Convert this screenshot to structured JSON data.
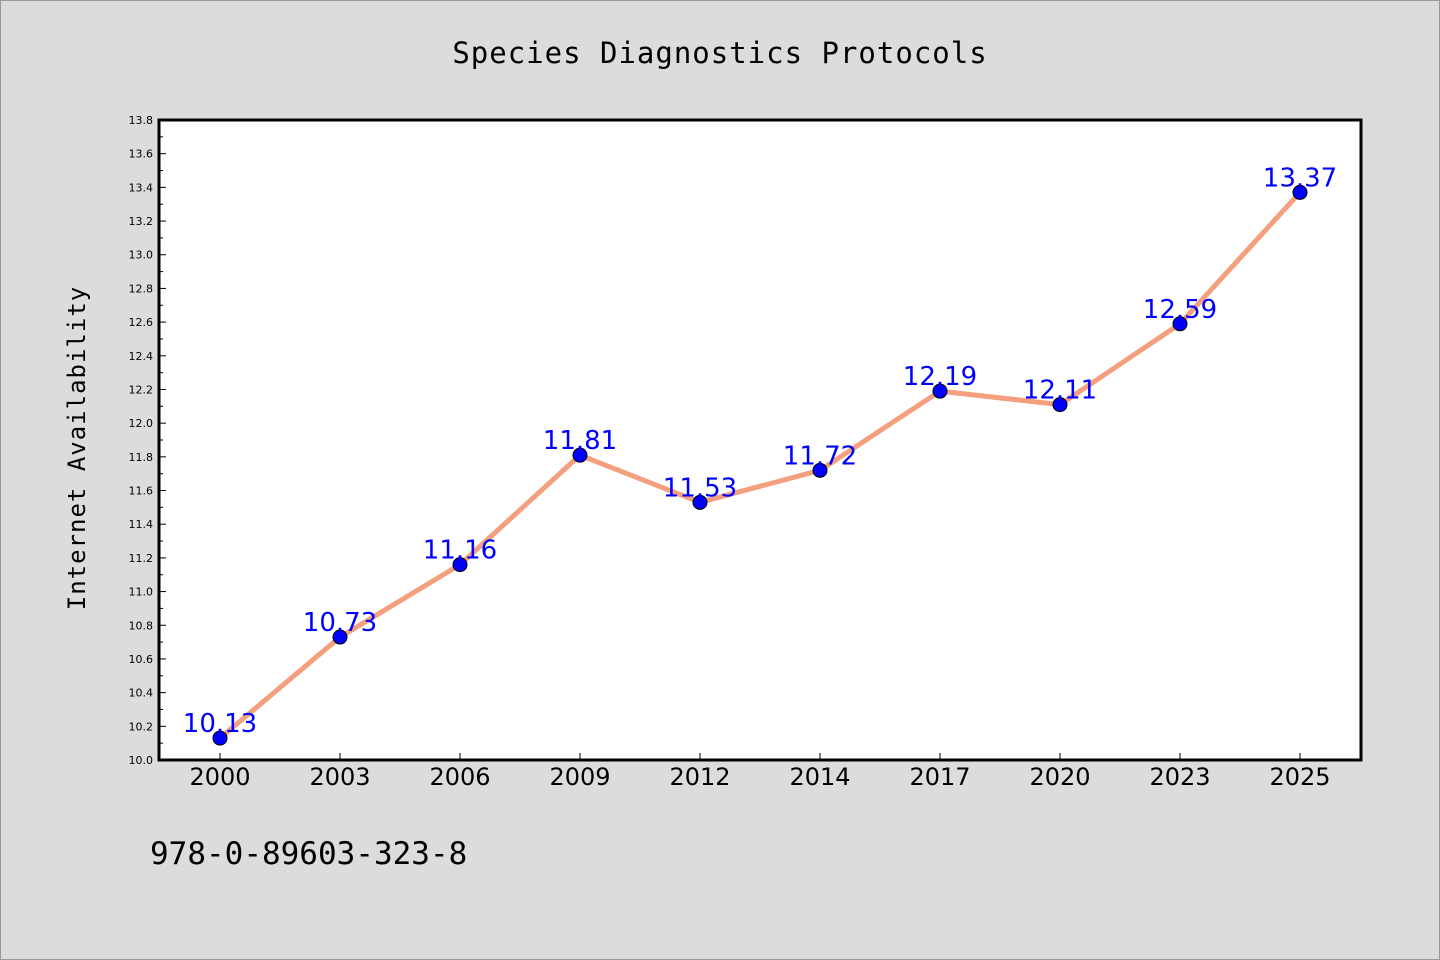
{
  "chart_data": {
    "type": "line",
    "title": "Species Diagnostics Protocols",
    "xlabel": "",
    "ylabel": "Internet Availability",
    "categories": [
      "2000",
      "2003",
      "2006",
      "2009",
      "2012",
      "2014",
      "2017",
      "2020",
      "2023",
      "2025"
    ],
    "series": [
      {
        "values": [
          10.13,
          10.73,
          11.16,
          11.81,
          11.53,
          11.72,
          12.19,
          12.11,
          12.59,
          13.37
        ]
      }
    ],
    "data_labels": [
      "10.13",
      "10.73",
      "11.16",
      "11.81",
      "11.53",
      "11.72",
      "12.19",
      "12.11",
      "12.59",
      "13.37"
    ],
    "ylim": [
      10.0,
      13.8
    ],
    "yticks": [
      "10.0",
      "10.2",
      "10.4",
      "10.6",
      "10.8",
      "11.0",
      "11.2",
      "11.4",
      "11.6",
      "11.8",
      "12.0",
      "12.2",
      "12.4",
      "12.6",
      "12.8",
      "13.0",
      "13.2",
      "13.4",
      "13.6",
      "13.8"
    ],
    "grid": false,
    "legend": "none",
    "annotation": "978-0-89603-323-8",
    "colors": {
      "line": "#f4a07e",
      "marker": "#0000ff",
      "data_label": "#0000ff",
      "plot_background": "#ffffff",
      "figure_background": "#dcdcdc"
    }
  }
}
